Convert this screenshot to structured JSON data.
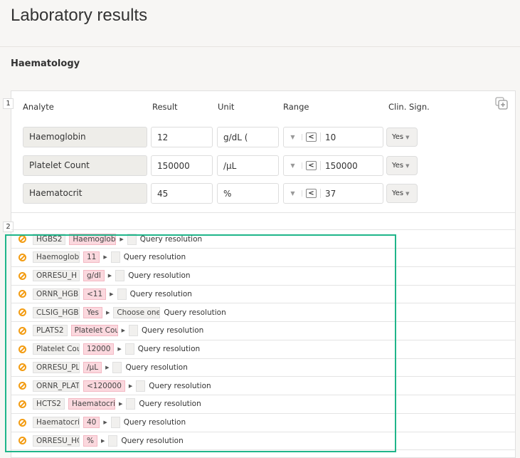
{
  "page": {
    "title": "Laboratory results",
    "section": "Haematology"
  },
  "form": {
    "number": "1",
    "headers": {
      "analyte": "Analyte",
      "result": "Result",
      "unit": "Unit",
      "range": "Range",
      "clin": "Clin. Sign."
    },
    "rows": [
      {
        "analyte": "Haemoglobin",
        "result": "12",
        "unit": "g/dL (",
        "operator": "<",
        "range": "10",
        "clin": "Yes"
      },
      {
        "analyte": "Platelet Count",
        "result": "150000",
        "unit": "/µL",
        "operator": "<",
        "range": "150000",
        "clin": "Yes"
      },
      {
        "analyte": "Haematocrit",
        "result": "45",
        "unit": "%",
        "operator": "<",
        "range": "37",
        "clin": "Yes"
      }
    ],
    "copy_icon": "copy-add-icon"
  },
  "queries": {
    "number": "2",
    "highlight_color": "#1fb58a",
    "items": [
      {
        "field": "HGBS2",
        "value": "Haemoglob",
        "extra": "",
        "label": "Query resolution"
      },
      {
        "field": "Haemoglob",
        "value": "11",
        "extra": "",
        "label": "Query resolution"
      },
      {
        "field": "ORRESU_H",
        "value": "g/dl",
        "extra": "",
        "label": "Query resolution"
      },
      {
        "field": "ORNR_HGB",
        "value": "<11",
        "extra": "",
        "label": "Query resolution"
      },
      {
        "field": "CLSIG_HGB",
        "value": "Yes",
        "extra": "Choose one",
        "label": "Query resolution"
      },
      {
        "field": "PLATS2",
        "value": "Platelet Cou",
        "extra": "",
        "label": "Query resolution"
      },
      {
        "field": "Platelet Cou",
        "value": "12000",
        "extra": "",
        "label": "Query resolution"
      },
      {
        "field": "ORRESU_PL",
        "value": "/µL",
        "extra": "",
        "label": "Query resolution"
      },
      {
        "field": "ORNR_PLAT",
        "value": "<120000",
        "extra": "",
        "label": "Query resolution"
      },
      {
        "field": "HCTS2",
        "value": "Haematocri",
        "extra": "",
        "label": "Query resolution"
      },
      {
        "field": "Haematocri",
        "value": "40",
        "extra": "",
        "label": "Query resolution"
      },
      {
        "field": "ORRESU_HC",
        "value": "%",
        "extra": "",
        "label": "Query resolution"
      }
    ]
  }
}
